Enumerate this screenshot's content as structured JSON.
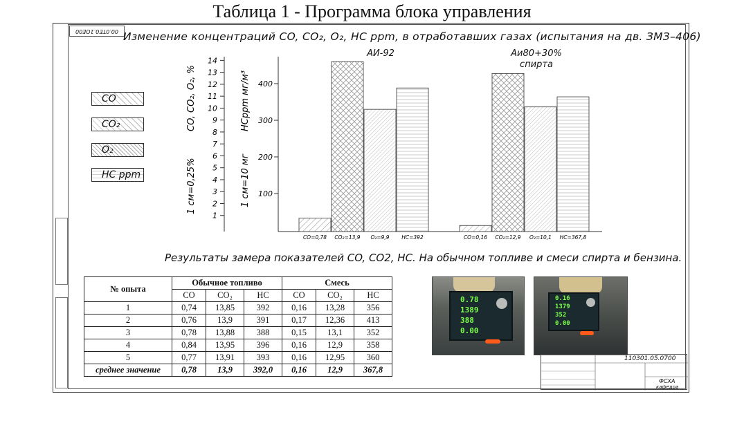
{
  "caption": "Таблица 1 - Программа блока управления",
  "stamp": "00.0ТЕ0.1ОЕ00",
  "chart": {
    "title": "Изменение концентраций CO, CO₂, O₂, HC ppm, в отработавших газах (испытания на дв. ЗМЗ–406)",
    "groups": [
      "АИ-92",
      "Аи80+30%",
      "спирта"
    ],
    "legend": [
      "CO",
      "CO₂",
      "O₂",
      "HC ppm"
    ],
    "left_axis_label": "CO, CO₂, O₂, %",
    "left_scale_note": "1 см=0,25%",
    "right_axis_label": "HCppm мг/м³",
    "right_scale_note": "1 см=10 мг",
    "left_ticks": [
      "14",
      "13",
      "12",
      "11",
      "10",
      "9",
      "8",
      "7",
      "6",
      "5",
      "4",
      "3",
      "2",
      "1"
    ],
    "right_ticks": [
      "400",
      "300",
      "200",
      "100"
    ]
  },
  "chart_data": {
    "type": "bar",
    "categories": [
      "АИ-92",
      "Аи80+30% спирта"
    ],
    "series": [
      {
        "name": "CO",
        "values": [
          0.78,
          0.16
        ]
      },
      {
        "name": "CO₂",
        "values": [
          13.9,
          12.9
        ]
      },
      {
        "name": "O₂",
        "values": [
          9.9,
          10.1
        ]
      },
      {
        "name": "HC ppm",
        "values": [
          392,
          367.8
        ]
      }
    ],
    "bar_labels": [
      [
        "CO=0,78",
        "CO₂=13,9",
        "O₂=9,9",
        "HC=392"
      ],
      [
        "CO=0,16",
        "CO₂=12,9",
        "O₂=10,1",
        "HC=367,8"
      ]
    ],
    "left_axis_range": [
      0,
      14
    ],
    "right_axis_range": [
      0,
      450
    ],
    "legend_placement": "left"
  },
  "results": {
    "title": "Результаты замера показателей CO, CO2, HC. На обычном топливе и смеси спирта и бензина.",
    "table": {
      "col_run": "№ опыта",
      "group_regular": "Обычное топливо",
      "group_mix": "Смесь",
      "sub_headers": [
        "CO",
        "CO₂",
        "HC",
        "CO",
        "CO₂",
        "HC"
      ],
      "rows": [
        [
          "1",
          "0,74",
          "13,85",
          "392",
          "0,16",
          "13,28",
          "356"
        ],
        [
          "2",
          "0,76",
          "13,9",
          "391",
          "0,17",
          "12,36",
          "413"
        ],
        [
          "3",
          "0,78",
          "13,88",
          "388",
          "0,15",
          "13,1",
          "352"
        ],
        [
          "4",
          "0,84",
          "13,95",
          "396",
          "0,16",
          "12,9",
          "358"
        ],
        [
          "5",
          "0,77",
          "13,91",
          "393",
          "0,16",
          "12,95",
          "360"
        ]
      ],
      "avg_row": [
        "среднее значение",
        "0,78",
        "13,9",
        "392,0",
        "0,16",
        "12,9",
        "367,8"
      ]
    }
  },
  "photos": [
    {
      "readings": [
        "0.78",
        "1389",
        "388",
        "0.00"
      ]
    },
    {
      "readings": [
        "0.16",
        "1379",
        "352",
        "0.00"
      ]
    }
  ],
  "title_block": {
    "code": "110301.05.0700",
    "org": "ФСХА",
    "group": "кафедра"
  },
  "colors": {
    "line": "#333333",
    "display_bg": "#1b2a2e",
    "digit_green": "#7cff4a"
  }
}
